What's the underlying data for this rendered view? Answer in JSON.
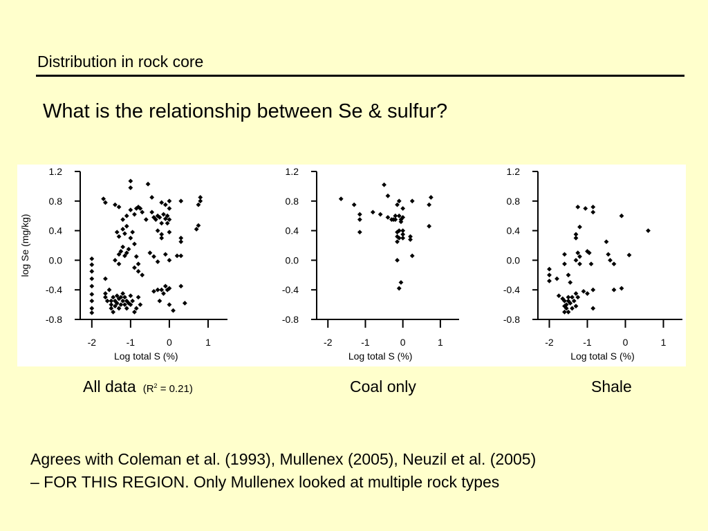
{
  "slide": {
    "title": "Distribution in rock core",
    "question": "What is the relationship between Se & sulfur?",
    "captions": {
      "all": "All data",
      "all_r2_prefix": "(R",
      "all_r2_sup": "2",
      "all_r2_suffix": " = 0.21)",
      "coal": "Coal only",
      "shale": "Shale"
    },
    "body": {
      "line1": "Agrees with Coleman et al. (1993), Mullenex (2005), Neuzil et al. (2005)",
      "line2": "– FOR THIS REGION. Only Mullenex looked at multiple rock types"
    }
  },
  "chart_data": [
    {
      "id": "all",
      "type": "scatter",
      "xlabel": "Log total S (%)",
      "ylabel": "log Se (mg/kg)",
      "xlim": [
        -2.3,
        1.5
      ],
      "ylim": [
        -0.8,
        1.2
      ],
      "xticks": [
        "-2",
        "-1",
        "0",
        "1"
      ],
      "yticks": [
        "-0.8",
        "-0.4",
        "0.0",
        "0.4",
        "0.8",
        "1.2"
      ],
      "marker_color": "#000000",
      "points": [
        [
          -2.0,
          -0.71
        ],
        [
          -2.0,
          -0.65
        ],
        [
          -2.0,
          -0.55
        ],
        [
          -2.0,
          -0.46
        ],
        [
          -2.0,
          -0.35
        ],
        [
          -2.0,
          -0.25
        ],
        [
          -2.0,
          -0.15
        ],
        [
          -2.0,
          -0.06
        ],
        [
          -2.0,
          0.02
        ],
        [
          -1.7,
          0.83
        ],
        [
          -1.65,
          0.78
        ],
        [
          -1.65,
          -0.5
        ],
        [
          -1.65,
          -0.45
        ],
        [
          -1.65,
          -0.25
        ],
        [
          -1.55,
          -0.4
        ],
        [
          -1.6,
          -0.55
        ],
        [
          -1.5,
          -0.55
        ],
        [
          -1.5,
          -0.6
        ],
        [
          -1.5,
          -0.65
        ],
        [
          -1.45,
          -0.5
        ],
        [
          -1.45,
          -0.7
        ],
        [
          -1.4,
          -0.55
        ],
        [
          -1.4,
          -0.62
        ],
        [
          -1.35,
          -0.48
        ],
        [
          -1.35,
          -0.58
        ],
        [
          -1.3,
          -0.52
        ],
        [
          -1.3,
          -0.65
        ],
        [
          -1.25,
          -0.5
        ],
        [
          -1.25,
          -0.6
        ],
        [
          -1.2,
          -0.55
        ],
        [
          -1.2,
          -0.45
        ],
        [
          -1.15,
          -0.6
        ],
        [
          -1.15,
          -0.5
        ],
        [
          -1.1,
          -0.55
        ],
        [
          -1.1,
          -0.65
        ],
        [
          -1.05,
          -0.58
        ],
        [
          -1.0,
          -0.48
        ],
        [
          -1.0,
          -0.6
        ],
        [
          -0.95,
          -0.55
        ],
        [
          -0.9,
          -0.7
        ],
        [
          -0.85,
          -0.65
        ],
        [
          -0.8,
          -0.5
        ],
        [
          -0.75,
          -0.6
        ],
        [
          -1.4,
          0.0
        ],
        [
          -1.3,
          0.08
        ],
        [
          -1.3,
          -0.05
        ],
        [
          -1.25,
          0.12
        ],
        [
          -1.2,
          0.18
        ],
        [
          -1.15,
          0.06
        ],
        [
          -1.1,
          0.1
        ],
        [
          -1.05,
          0.15
        ],
        [
          -1.35,
          0.38
        ],
        [
          -1.3,
          0.32
        ],
        [
          -1.2,
          0.42
        ],
        [
          -1.15,
          0.36
        ],
        [
          -1.1,
          0.46
        ],
        [
          -1.0,
          0.3
        ],
        [
          -0.95,
          0.38
        ],
        [
          -0.9,
          0.22
        ],
        [
          -0.85,
          0.05
        ],
        [
          -0.8,
          -0.05
        ],
        [
          -1.4,
          0.75
        ],
        [
          -1.3,
          0.72
        ],
        [
          -1.2,
          0.55
        ],
        [
          -1.1,
          0.6
        ],
        [
          -1.0,
          0.68
        ],
        [
          -0.9,
          0.62
        ],
        [
          -0.85,
          0.7
        ],
        [
          -0.8,
          0.72
        ],
        [
          -0.75,
          0.7
        ],
        [
          -0.7,
          0.65
        ],
        [
          -0.6,
          0.55
        ],
        [
          -1.0,
          1.07
        ],
        [
          -1.0,
          0.98
        ],
        [
          -0.55,
          1.03
        ],
        [
          -0.45,
          0.85
        ],
        [
          -0.45,
          0.65
        ],
        [
          -0.4,
          0.58
        ],
        [
          -0.35,
          0.55
        ],
        [
          -0.3,
          0.6
        ],
        [
          -0.25,
          0.58
        ],
        [
          -0.2,
          0.5
        ],
        [
          -0.15,
          0.62
        ],
        [
          -0.1,
          0.56
        ],
        [
          -0.05,
          0.6
        ],
        [
          0.0,
          0.55
        ],
        [
          -0.05,
          0.5
        ],
        [
          -0.2,
          0.78
        ],
        [
          -0.1,
          0.75
        ],
        [
          0.0,
          0.8
        ],
        [
          0.0,
          0.7
        ],
        [
          0.3,
          0.8
        ],
        [
          -0.3,
          0.4
        ],
        [
          -0.2,
          0.35
        ],
        [
          -0.2,
          0.3
        ],
        [
          0.0,
          0.38
        ],
        [
          0.3,
          0.3
        ],
        [
          0.3,
          0.25
        ],
        [
          0.7,
          0.42
        ],
        [
          0.75,
          0.47
        ],
        [
          0.75,
          0.75
        ],
        [
          0.8,
          0.85
        ],
        [
          0.8,
          0.8
        ],
        [
          -0.5,
          0.1
        ],
        [
          -0.4,
          0.05
        ],
        [
          -0.3,
          -0.02
        ],
        [
          -0.1,
          0.08
        ],
        [
          0.0,
          0.0
        ],
        [
          0.2,
          0.06
        ],
        [
          0.3,
          0.06
        ],
        [
          -0.9,
          -0.1
        ],
        [
          -0.8,
          -0.15
        ],
        [
          -0.7,
          -0.2
        ],
        [
          -0.3,
          -0.4
        ],
        [
          -0.25,
          -0.55
        ],
        [
          -0.2,
          -0.4
        ],
        [
          -0.15,
          -0.45
        ],
        [
          -0.1,
          -0.35
        ],
        [
          -0.05,
          -0.4
        ],
        [
          0.0,
          -0.38
        ],
        [
          0.0,
          -0.6
        ],
        [
          0.1,
          -0.68
        ],
        [
          0.3,
          -0.35
        ],
        [
          0.4,
          -0.58
        ],
        [
          -0.4,
          -0.42
        ]
      ]
    },
    {
      "id": "coal",
      "type": "scatter",
      "xlabel": "Log total S (%)",
      "ylabel": "",
      "xlim": [
        -2.3,
        1.5
      ],
      "ylim": [
        -0.8,
        1.2
      ],
      "xticks": [
        "-2",
        "-1",
        "0",
        "1"
      ],
      "yticks": [
        "-0.8",
        "-0.4",
        "0.0",
        "0.4",
        "0.8",
        "1.2"
      ],
      "marker_color": "#000000",
      "points": [
        [
          -1.65,
          0.83
        ],
        [
          -1.3,
          0.75
        ],
        [
          -1.15,
          0.62
        ],
        [
          -1.15,
          0.55
        ],
        [
          -1.15,
          0.38
        ],
        [
          -0.8,
          0.65
        ],
        [
          -0.6,
          0.62
        ],
        [
          -0.5,
          1.02
        ],
        [
          -0.4,
          0.87
        ],
        [
          -0.4,
          0.58
        ],
        [
          -0.3,
          0.55
        ],
        [
          -0.25,
          0.55
        ],
        [
          -0.2,
          0.6
        ],
        [
          -0.2,
          0.55
        ],
        [
          -0.15,
          0.75
        ],
        [
          -0.1,
          0.8
        ],
        [
          -0.1,
          0.6
        ],
        [
          -0.05,
          0.55
        ],
        [
          0.0,
          0.7
        ],
        [
          0.0,
          0.58
        ],
        [
          -0.05,
          0.52
        ],
        [
          -0.1,
          0.4
        ],
        [
          -0.15,
          0.38
        ],
        [
          0.0,
          0.4
        ],
        [
          0.0,
          0.3
        ],
        [
          -0.15,
          0.25
        ],
        [
          -0.1,
          0.3
        ],
        [
          -0.15,
          0.32
        ],
        [
          0.0,
          0.35
        ],
        [
          0.2,
          0.28
        ],
        [
          0.2,
          0.32
        ],
        [
          0.25,
          0.8
        ],
        [
          0.25,
          0.06
        ],
        [
          -0.15,
          0.0
        ],
        [
          0.7,
          0.46
        ],
        [
          0.7,
          0.75
        ],
        [
          0.75,
          0.85
        ],
        [
          -0.05,
          -0.3
        ],
        [
          -0.1,
          -0.38
        ]
      ]
    },
    {
      "id": "shale",
      "type": "scatter",
      "xlabel": "Log total S (%)",
      "ylabel": "",
      "xlim": [
        -2.3,
        1.5
      ],
      "ylim": [
        -0.8,
        1.2
      ],
      "xticks": [
        "-2",
        "-1",
        "0",
        "1"
      ],
      "yticks": [
        "-0.8",
        "-0.4",
        "0.0",
        "0.4",
        "0.8",
        "1.2"
      ],
      "marker_color": "#000000",
      "points": [
        [
          -2.0,
          -0.12
        ],
        [
          -2.0,
          -0.2
        ],
        [
          -2.0,
          -0.28
        ],
        [
          -1.8,
          -0.25
        ],
        [
          -1.75,
          -0.48
        ],
        [
          -1.65,
          -0.52
        ],
        [
          -1.6,
          -0.62
        ],
        [
          -1.6,
          -0.55
        ],
        [
          -1.6,
          -0.7
        ],
        [
          -1.55,
          -0.6
        ],
        [
          -1.55,
          -0.65
        ],
        [
          -1.5,
          -0.5
        ],
        [
          -1.5,
          -0.55
        ],
        [
          -1.5,
          -0.7
        ],
        [
          -1.45,
          -0.58
        ],
        [
          -1.4,
          -0.5
        ],
        [
          -1.4,
          -0.65
        ],
        [
          -1.35,
          -0.55
        ],
        [
          -1.3,
          -0.45
        ],
        [
          -1.3,
          -0.62
        ],
        [
          -1.25,
          -0.5
        ],
        [
          -1.6,
          0.08
        ],
        [
          -1.6,
          -0.05
        ],
        [
          -1.5,
          -0.2
        ],
        [
          -1.45,
          -0.3
        ],
        [
          -1.3,
          0.0
        ],
        [
          -1.25,
          0.1
        ],
        [
          -1.2,
          0.05
        ],
        [
          -1.2,
          -0.05
        ],
        [
          -1.1,
          -0.42
        ],
        [
          -1.0,
          -0.45
        ],
        [
          -1.0,
          0.12
        ],
        [
          -0.95,
          0.1
        ],
        [
          -0.9,
          -0.05
        ],
        [
          -0.85,
          -0.4
        ],
        [
          -0.85,
          -0.65
        ],
        [
          -1.25,
          0.72
        ],
        [
          -1.3,
          0.35
        ],
        [
          -1.3,
          0.3
        ],
        [
          -1.2,
          0.45
        ],
        [
          -1.05,
          0.7
        ],
        [
          -0.85,
          0.72
        ],
        [
          -0.85,
          0.65
        ],
        [
          -0.5,
          0.25
        ],
        [
          -0.45,
          0.08
        ],
        [
          -0.4,
          0.0
        ],
        [
          -0.3,
          -0.05
        ],
        [
          -0.3,
          -0.4
        ],
        [
          -0.1,
          -0.38
        ],
        [
          -0.1,
          0.6
        ],
        [
          0.1,
          0.07
        ],
        [
          0.6,
          0.4
        ]
      ]
    }
  ]
}
